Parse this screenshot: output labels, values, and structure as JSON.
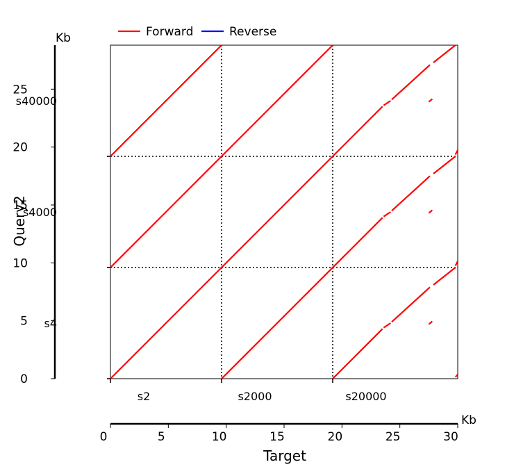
{
  "chart_data": {
    "type": "dotplot",
    "legend": {
      "position": "top-left",
      "items": [
        {
          "name": "Forward",
          "color": "#ff0000"
        },
        {
          "name": "Reverse",
          "color": "#0000ff"
        }
      ]
    },
    "xlabel": "Target",
    "ylabel": "Query2",
    "x_unit": "Kb",
    "y_unit": "Kb",
    "xlim": [
      0,
      30
    ],
    "ylim": [
      0,
      28.8
    ],
    "x_ticks": [
      0,
      5,
      10,
      15,
      20,
      25,
      30
    ],
    "y_ticks": [
      0,
      5,
      10,
      15,
      20,
      25
    ],
    "x_tick_labels": [
      "0",
      "5",
      "10",
      "15",
      "20",
      "25",
      "30"
    ],
    "y_tick_labels": [
      "0",
      "5",
      "10",
      "15",
      "20",
      "25"
    ],
    "target_sequences": [
      {
        "name": "s2",
        "start": 0,
        "end": 9.6
      },
      {
        "name": "s2000",
        "start": 9.6,
        "end": 19.2
      },
      {
        "name": "s20000",
        "start": 19.2,
        "end": 30
      }
    ],
    "query_sequences": [
      {
        "name": "s4",
        "start": 0,
        "end": 9.6
      },
      {
        "name": "s4000",
        "start": 9.6,
        "end": 19.2
      },
      {
        "name": "s40000",
        "start": 19.2,
        "end": 28.8
      }
    ],
    "boundary_lines": {
      "x": [
        9.6,
        19.2
      ],
      "y": [
        9.6,
        19.2
      ],
      "style": "dotted"
    },
    "segments": [
      {
        "series": "Forward",
        "x": [
          0,
          9.6
        ],
        "y": [
          0,
          9.6
        ]
      },
      {
        "series": "Forward",
        "x": [
          0,
          9.6
        ],
        "y": [
          9.6,
          19.2
        ]
      },
      {
        "series": "Forward",
        "x": [
          0,
          9.6
        ],
        "y": [
          19.2,
          28.8
        ]
      },
      {
        "series": "Forward",
        "x": [
          9.6,
          19.2
        ],
        "y": [
          0,
          9.6
        ]
      },
      {
        "series": "Forward",
        "x": [
          9.6,
          19.2
        ],
        "y": [
          9.6,
          19.2
        ]
      },
      {
        "series": "Forward",
        "x": [
          9.6,
          19.2
        ],
        "y": [
          19.2,
          28.8
        ]
      },
      {
        "series": "Forward",
        "x": [
          19.2,
          23.5
        ],
        "y": [
          0,
          4.3
        ]
      },
      {
        "series": "Forward",
        "x": [
          23.6,
          24.2
        ],
        "y": [
          4.4,
          4.8
        ]
      },
      {
        "series": "Forward",
        "x": [
          24.3,
          27.6
        ],
        "y": [
          4.9,
          7.9
        ]
      },
      {
        "series": "Forward",
        "x": [
          27.5,
          27.8
        ],
        "y": [
          4.7,
          4.95
        ]
      },
      {
        "series": "Forward",
        "x": [
          27.9,
          29.8
        ],
        "y": [
          8.1,
          9.6
        ]
      },
      {
        "series": "Forward",
        "x": [
          29.8,
          30
        ],
        "y": [
          0.15,
          0.35
        ]
      },
      {
        "series": "Forward",
        "x": [
          29.8,
          30
        ],
        "y": [
          9.75,
          10.15
        ]
      },
      {
        "series": "Forward",
        "x": [
          19.2,
          23.5
        ],
        "y": [
          9.6,
          13.9
        ]
      },
      {
        "series": "Forward",
        "x": [
          23.6,
          24.2
        ],
        "y": [
          14.0,
          14.4
        ]
      },
      {
        "series": "Forward",
        "x": [
          24.3,
          27.6
        ],
        "y": [
          14.5,
          17.5
        ]
      },
      {
        "series": "Forward",
        "x": [
          27.5,
          27.8
        ],
        "y": [
          14.3,
          14.55
        ]
      },
      {
        "series": "Forward",
        "x": [
          27.9,
          29.8
        ],
        "y": [
          17.7,
          19.2
        ]
      },
      {
        "series": "Forward",
        "x": [
          29.8,
          30
        ],
        "y": [
          19.35,
          19.75
        ]
      },
      {
        "series": "Forward",
        "x": [
          19.2,
          23.5
        ],
        "y": [
          19.2,
          23.5
        ]
      },
      {
        "series": "Forward",
        "x": [
          23.6,
          24.2
        ],
        "y": [
          23.6,
          24.0
        ]
      },
      {
        "series": "Forward",
        "x": [
          24.3,
          27.6
        ],
        "y": [
          24.1,
          27.1
        ]
      },
      {
        "series": "Forward",
        "x": [
          27.5,
          27.8
        ],
        "y": [
          23.9,
          24.15
        ]
      },
      {
        "series": "Forward",
        "x": [
          27.9,
          29.8
        ],
        "y": [
          27.3,
          28.8
        ]
      }
    ]
  }
}
